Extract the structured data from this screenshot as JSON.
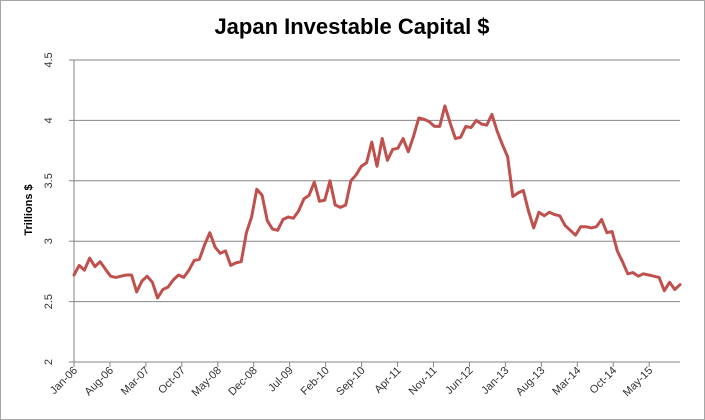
{
  "chart_data": {
    "type": "line",
    "title": "Japan Investable Capital $",
    "xlabel": "",
    "ylabel": "Trillions $",
    "ylim": [
      2,
      4.5
    ],
    "yticks": [
      "2",
      "2.5",
      "3",
      "3.5",
      "4",
      "4.5"
    ],
    "grid": true,
    "legend": "none",
    "x_tick_labels": [
      "Jan-06",
      "Aug-06",
      "Mar-07",
      "Oct-07",
      "May-08",
      "Dec-08",
      "Jul-09",
      "Feb-10",
      "Sep-10",
      "Apr-11",
      "Nov-11",
      "Jun-12",
      "Jan-13",
      "Aug-13",
      "Mar-14",
      "Oct-14",
      "May-15"
    ],
    "x_start": "Jan-06",
    "x_end": "Oct-15",
    "line_color": "#c0504d",
    "series": [
      {
        "values": [
          2.72,
          2.8,
          2.76,
          2.86,
          2.79,
          2.83,
          2.77,
          2.71,
          2.7,
          2.71,
          2.72,
          2.72,
          2.58,
          2.67,
          2.71,
          2.66,
          2.53,
          2.6,
          2.62,
          2.68,
          2.72,
          2.7,
          2.76,
          2.84,
          2.85,
          2.97,
          3.07,
          2.95,
          2.9,
          2.92,
          2.8,
          2.82,
          2.83,
          3.07,
          3.2,
          3.43,
          3.38,
          3.17,
          3.1,
          3.09,
          3.18,
          3.2,
          3.19,
          3.25,
          3.35,
          3.38,
          3.49,
          3.33,
          3.34,
          3.5,
          3.3,
          3.28,
          3.3,
          3.5,
          3.55,
          3.62,
          3.65,
          3.82,
          3.62,
          3.85,
          3.67,
          3.76,
          3.77,
          3.85,
          3.74,
          3.87,
          4.02,
          4.01,
          3.99,
          3.95,
          3.95,
          4.12,
          3.98,
          3.85,
          3.86,
          3.95,
          3.94,
          4.0,
          3.97,
          3.96,
          4.05,
          3.91,
          3.8,
          3.7,
          3.37,
          3.4,
          3.42,
          3.25,
          3.11,
          3.24,
          3.21,
          3.24,
          3.22,
          3.21,
          3.13,
          3.09,
          3.05,
          3.12,
          3.12,
          3.11,
          3.12,
          3.18,
          3.07,
          3.08,
          2.92,
          2.83,
          2.73,
          2.74,
          2.71,
          2.73,
          2.72,
          2.71,
          2.7,
          2.59,
          2.66,
          2.6,
          2.64
        ]
      }
    ]
  }
}
